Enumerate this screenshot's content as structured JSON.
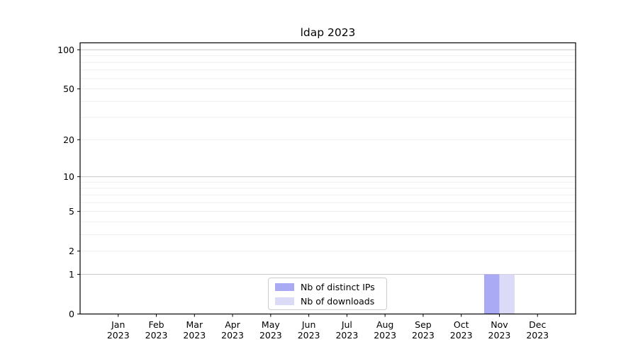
{
  "chart_data": {
    "type": "bar",
    "title": "ldap 2023",
    "categories": [
      [
        "Jan",
        "2023"
      ],
      [
        "Feb",
        "2023"
      ],
      [
        "Mar",
        "2023"
      ],
      [
        "Apr",
        "2023"
      ],
      [
        "May",
        "2023"
      ],
      [
        "Jun",
        "2023"
      ],
      [
        "Jul",
        "2023"
      ],
      [
        "Aug",
        "2023"
      ],
      [
        "Sep",
        "2023"
      ],
      [
        "Oct",
        "2023"
      ],
      [
        "Nov",
        "2023"
      ],
      [
        "Dec",
        "2023"
      ]
    ],
    "series": [
      {
        "name": "Nb of distinct IPs",
        "color": "#a9a9f4",
        "values": [
          0,
          0,
          0,
          0,
          0,
          0,
          0,
          0,
          0,
          0,
          1,
          0
        ]
      },
      {
        "name": "Nb of downloads",
        "color": "#dbdbf7",
        "values": [
          0,
          0,
          0,
          0,
          0,
          0,
          0,
          0,
          0,
          0,
          1,
          0
        ]
      }
    ],
    "yscale": "log1p",
    "y_ticks": [
      0,
      1,
      2,
      5,
      10,
      20,
      50,
      100
    ],
    "ylim": [
      0,
      113
    ],
    "grid": {
      "major_lines": [
        1,
        10,
        100
      ],
      "minor_lines": [
        2,
        3,
        4,
        5,
        6,
        7,
        8,
        9,
        20,
        30,
        40,
        50,
        60,
        70,
        80,
        90
      ],
      "major_color": "#c9c9c9",
      "minor_color": "#ededed"
    },
    "legend_position": "bottom-center",
    "axis_color": "#000000",
    "background": "#ffffff"
  }
}
